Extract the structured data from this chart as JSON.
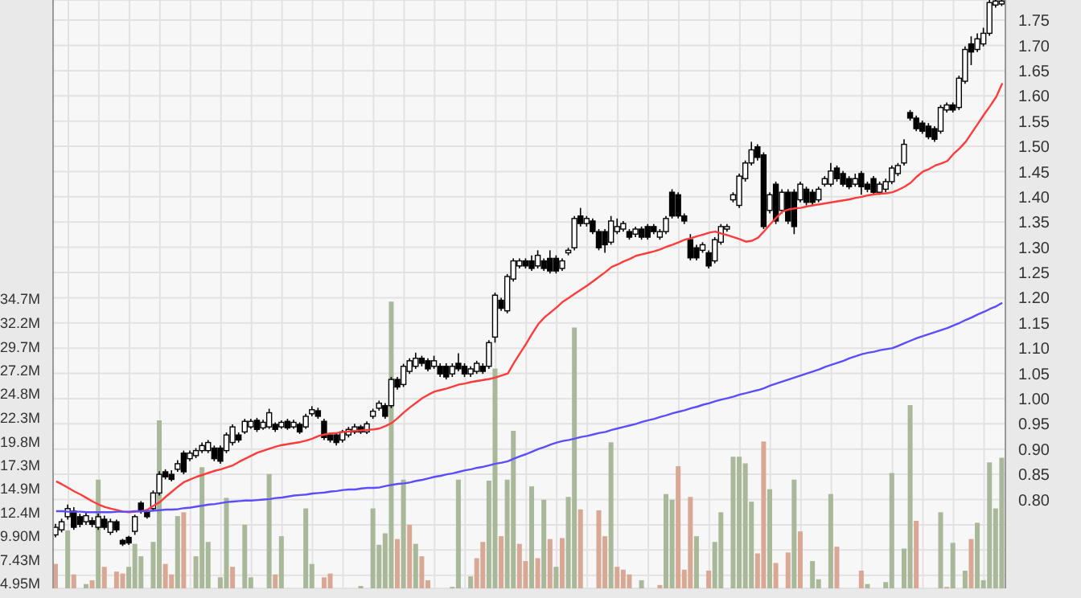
{
  "chart_data": {
    "type": "candlestick",
    "categories": [
      null,
      null,
      null,
      null,
      null,
      null,
      null,
      null,
      null,
      null,
      null,
      null,
      null,
      null,
      null,
      null,
      null,
      null,
      null,
      null,
      null,
      null,
      null,
      null,
      null,
      null,
      null,
      null,
      null,
      null,
      null,
      null,
      null,
      null,
      null,
      null,
      null,
      null,
      null,
      null,
      null,
      null,
      null,
      null,
      null,
      null,
      null,
      null,
      null,
      null,
      null,
      null,
      null,
      null,
      null,
      null,
      null,
      null,
      null,
      null,
      null,
      null,
      null,
      null,
      null,
      null,
      null,
      null,
      null,
      null,
      null,
      null,
      null,
      null,
      null,
      null,
      null,
      null,
      null,
      null,
      null,
      null,
      null,
      null,
      null,
      null,
      null,
      null,
      null,
      null,
      null,
      null,
      null,
      null,
      null,
      null,
      null,
      null,
      null,
      null,
      null,
      null,
      null,
      null,
      null,
      null,
      null,
      null,
      null,
      null,
      null,
      null,
      null,
      null,
      null,
      null,
      null,
      null,
      null,
      null,
      null,
      null,
      null,
      null,
      null,
      null,
      null,
      null,
      null,
      null,
      null,
      null,
      null,
      null,
      null,
      null,
      null,
      null,
      null,
      null,
      null,
      null,
      null,
      null,
      null,
      null,
      null,
      null,
      null,
      null,
      null,
      null,
      null,
      null,
      null,
      null
    ],
    "series": [
      {
        "type": "bar",
        "axis": "y",
        "values": [
          7.0,
          null,
          10.5,
          5.9,
          null,
          4.9,
          5.3,
          15.8,
          6.7,
          null,
          6.2,
          6.0,
          6.7,
          9.1,
          7.8,
          null,
          9.3,
          22.0,
          7.0,
          5.9,
          12.0,
          12.4,
          null,
          7.8,
          17.1,
          9.3,
          null,
          5.6,
          13.9,
          6.7,
          null,
          11.1,
          5.6,
          null,
          null,
          16.4,
          5.9,
          9.9,
          null,
          null,
          null,
          12.8,
          7.0,
          null,
          5.6,
          6.0,
          null,
          null,
          null,
          null,
          4.7,
          null,
          12.8,
          9.0,
          10.2,
          34.4,
          9.6,
          15.8,
          11.1,
          9.1,
          7.8,
          5.3,
          null,
          null,
          null,
          4.6,
          15.8,
          null,
          5.7,
          7.6,
          9.3,
          15.7,
          27.4,
          9.9,
          15.8,
          20.9,
          9.1,
          7.3,
          15.1,
          7.6,
          13.7,
          9.6,
          6.7,
          9.7,
          14.0,
          31.7,
          12.7,
          null,
          null,
          12.6,
          9.9,
          19.7,
          6.7,
          6.4,
          5.9,
          null,
          5.3,
          null,
          null,
          4.8,
          14.3,
          13.7,
          17.2,
          6.4,
          14.0,
          9.9,
          null,
          6.3,
          9.3,
          12.4,
          null,
          18.2,
          18.2,
          17.5,
          13.5,
          8.1,
          19.8,
          14.8,
          7.1,
          null,
          8.2,
          15.8,
          10.4,
          null,
          7.3,
          5.4,
          null,
          14.3,
          8.8,
          null,
          null,
          null,
          6.3,
          4.9,
          null,
          null,
          5.1,
          16.5,
          null,
          8.6,
          23.6,
          11.5,
          null,
          null,
          null,
          12.4,
          4.6,
          9.2,
          null,
          6.3,
          9.6,
          11.3,
          5.3,
          17.6,
          12.8,
          18.1
        ],
        "colors": [
          "#d8a894",
          "#a8b898",
          "#a8b898",
          "#d8a894",
          "#a8b898",
          "#a8b898",
          "#d8a894",
          "#a8b898",
          "#d8a894",
          "#a8b898",
          "#d8a894",
          "#d8a894",
          "#a8b898",
          "#a8b898",
          "#a8b898",
          "#a8b898",
          "#a8b898",
          "#a8b898",
          "#d8a894",
          "#d8a894",
          "#a8b898",
          "#d8a894",
          "#a8b898",
          "#a8b898",
          "#a8b898",
          "#a8b898",
          "#a8b898",
          "#a8b898",
          "#a8b898",
          "#d8a894",
          "#a8b898",
          "#a8b898",
          "#a8b898",
          "#a8b898",
          "#a8b898",
          "#a8b898",
          "#d8a894",
          "#a8b898",
          "#a8b898",
          "#a8b898",
          "#a8b898",
          "#a8b898",
          "#a8b898",
          "#a8b898",
          "#d8a894",
          "#d8a894",
          "#a8b898",
          "#a8b898",
          "#a8b898",
          "#a8b898",
          "#a8b898",
          "#a8b898",
          "#a8b898",
          "#a8b898",
          "#a8b898",
          "#a8b898",
          "#d8a894",
          "#a8b898",
          "#d8a894",
          "#a8b898",
          "#d8a894",
          "#d8a894",
          "#a8b898",
          "#a8b898",
          "#a8b898",
          "#a8b898",
          "#a8b898",
          "#a8b898",
          "#a8b898",
          "#d8a894",
          "#d8a894",
          "#a8b898",
          "#a8b898",
          "#d8a894",
          "#a8b898",
          "#a8b898",
          "#d8a894",
          "#d8a894",
          "#a8b898",
          "#d8a894",
          "#a8b898",
          "#d8a894",
          "#a8b898",
          "#d8a894",
          "#a8b898",
          "#a8b898",
          "#d8a894",
          "#a8b898",
          "#a8b898",
          "#d8a894",
          "#d8a894",
          "#a8b898",
          "#d8a894",
          "#d8a894",
          "#d8a894",
          "#a8b898",
          "#a8b898",
          "#a8b898",
          "#a8b898",
          "#d8a894",
          "#a8b898",
          "#a8b898",
          "#d8a894",
          "#d8a894",
          "#d8a894",
          "#a8b898",
          "#a8b898",
          "#d8a894",
          "#a8b898",
          "#a8b898",
          "#a8b898",
          "#a8b898",
          "#a8b898",
          "#a8b898",
          "#a8b898",
          "#d8a894",
          "#d8a894",
          "#a8b898",
          "#d8a894",
          "#a8b898",
          "#d8a894",
          "#a8b898",
          "#d8a894",
          "#a8b898",
          "#a8b898",
          "#a8b898",
          "#a8b898",
          "#a8b898",
          "#d8a894",
          "#a8b898",
          "#a8b898",
          "#a8b898",
          "#d8a894",
          "#a8b898",
          "#a8b898",
          "#a8b898",
          "#a8b898",
          "#a8b898",
          "#a8b898",
          "#a8b898",
          "#a8b898",
          "#d8a894",
          "#a8b898",
          "#a8b898",
          "#a8b898",
          "#a8b898",
          "#d8a894",
          "#a8b898",
          "#a8b898",
          "#a8b898",
          "#d8a894",
          "#a8b898",
          "#a8b898",
          "#a8b898",
          "#a8b898",
          "#a8b898"
        ]
      },
      {
        "type": "candlestick",
        "axis": "y2",
        "color": "#000000",
        "ohlc": [
          [
            0.73,
            0.752,
            0.725,
            0.745
          ],
          [
            0.74,
            0.762,
            0.735,
            0.756
          ],
          [
            0.766,
            0.79,
            0.76,
            0.782
          ],
          [
            0.777,
            0.785,
            0.74,
            0.745
          ],
          [
            0.766,
            0.772,
            0.745,
            0.751
          ],
          [
            0.756,
            0.775,
            0.75,
            0.768
          ],
          [
            0.758,
            0.765,
            0.745,
            0.751
          ],
          [
            0.745,
            0.772,
            0.74,
            0.766
          ],
          [
            0.761,
            0.768,
            0.74,
            0.745
          ],
          [
            0.735,
            0.762,
            0.73,
            0.756
          ],
          [
            0.756,
            0.76,
            0.735,
            0.74
          ],
          [
            0.719,
            0.722,
            0.708,
            0.712
          ],
          [
            0.725,
            0.728,
            0.71,
            0.714
          ],
          [
            0.737,
            0.77,
            0.73,
            0.766
          ],
          [
            0.793,
            0.797,
            0.772,
            0.777
          ],
          [
            0.777,
            0.78,
            0.762,
            0.766
          ],
          [
            0.782,
            0.818,
            0.778,
            0.813
          ],
          [
            0.813,
            0.856,
            0.808,
            0.85
          ],
          [
            0.855,
            0.86,
            0.84,
            0.845
          ],
          [
            0.85,
            0.858,
            0.836,
            0.84
          ],
          [
            0.86,
            0.878,
            0.855,
            0.871
          ],
          [
            0.892,
            0.897,
            0.85,
            0.855
          ],
          [
            0.881,
            0.897,
            0.876,
            0.892
          ],
          [
            0.887,
            0.902,
            0.882,
            0.897
          ],
          [
            0.897,
            0.913,
            0.892,
            0.907
          ],
          [
            0.897,
            0.918,
            0.892,
            0.913
          ],
          [
            0.902,
            0.907,
            0.876,
            0.881
          ],
          [
            0.902,
            0.907,
            0.871,
            0.876
          ],
          [
            0.897,
            0.933,
            0.892,
            0.928
          ],
          [
            0.913,
            0.949,
            0.907,
            0.944
          ],
          [
            0.928,
            0.933,
            0.913,
            0.918
          ],
          [
            0.934,
            0.96,
            0.93,
            0.955
          ],
          [
            0.944,
            0.96,
            0.94,
            0.955
          ],
          [
            0.957,
            0.962,
            0.934,
            0.939
          ],
          [
            0.942,
            0.958,
            0.938,
            0.953
          ],
          [
            0.944,
            0.98,
            0.94,
            0.972
          ],
          [
            0.949,
            0.953,
            0.934,
            0.939
          ],
          [
            0.944,
            0.957,
            0.94,
            0.953
          ],
          [
            0.955,
            0.96,
            0.938,
            0.942
          ],
          [
            0.944,
            0.958,
            0.94,
            0.953
          ],
          [
            0.949,
            0.953,
            0.93,
            0.934
          ],
          [
            0.944,
            0.97,
            0.94,
            0.965
          ],
          [
            0.97,
            0.985,
            0.965,
            0.978
          ],
          [
            0.976,
            0.982,
            0.96,
            0.965
          ],
          [
            0.955,
            0.96,
            0.918,
            0.923
          ],
          [
            0.928,
            0.933,
            0.913,
            0.918
          ],
          [
            0.928,
            0.932,
            0.907,
            0.913
          ],
          [
            0.918,
            0.938,
            0.913,
            0.934
          ],
          [
            0.928,
            0.944,
            0.923,
            0.939
          ],
          [
            0.934,
            0.95,
            0.93,
            0.944
          ],
          [
            0.944,
            0.948,
            0.93,
            0.934
          ],
          [
            0.934,
            0.955,
            0.93,
            0.95
          ],
          [
            0.965,
            0.98,
            0.96,
            0.975
          ],
          [
            0.981,
            0.996,
            0.976,
            0.991
          ],
          [
            0.986,
            0.991,
            0.96,
            0.965
          ],
          [
            0.986,
            1.043,
            0.981,
            1.038
          ],
          [
            1.038,
            1.043,
            1.018,
            1.023
          ],
          [
            1.028,
            1.069,
            1.023,
            1.064
          ],
          [
            1.054,
            1.08,
            1.049,
            1.075
          ],
          [
            1.064,
            1.091,
            1.059,
            1.08
          ],
          [
            1.08,
            1.085,
            1.064,
            1.07
          ],
          [
            1.075,
            1.08,
            1.054,
            1.059
          ],
          [
            1.064,
            1.085,
            1.059,
            1.075
          ],
          [
            1.064,
            1.07,
            1.043,
            1.049
          ],
          [
            1.064,
            1.07,
            1.038,
            1.043
          ],
          [
            1.049,
            1.07,
            1.043,
            1.064
          ],
          [
            1.07,
            1.09,
            1.054,
            1.059
          ],
          [
            1.064,
            1.07,
            1.043,
            1.049
          ],
          [
            1.049,
            1.064,
            1.043,
            1.059
          ],
          [
            1.054,
            1.075,
            1.049,
            1.07
          ],
          [
            1.064,
            1.07,
            1.049,
            1.054
          ],
          [
            1.064,
            1.116,
            1.059,
            1.111
          ],
          [
            1.122,
            1.21,
            1.111,
            1.205
          ],
          [
            1.195,
            1.2,
            1.174,
            1.179
          ],
          [
            1.174,
            1.247,
            1.169,
            1.242
          ],
          [
            1.237,
            1.278,
            1.232,
            1.273
          ],
          [
            1.263,
            1.278,
            1.258,
            1.273
          ],
          [
            1.273,
            1.278,
            1.258,
            1.263
          ],
          [
            1.273,
            1.284,
            1.253,
            1.258
          ],
          [
            1.263,
            1.294,
            1.258,
            1.284
          ],
          [
            1.273,
            1.278,
            1.253,
            1.258
          ],
          [
            1.278,
            1.294,
            1.248,
            1.253
          ],
          [
            1.278,
            1.284,
            1.248,
            1.253
          ],
          [
            1.258,
            1.278,
            1.253,
            1.273
          ],
          [
            1.289,
            1.299,
            1.284,
            1.294
          ],
          [
            1.299,
            1.362,
            1.294,
            1.357
          ],
          [
            1.362,
            1.378,
            1.341,
            1.347
          ],
          [
            1.347,
            1.362,
            1.341,
            1.357
          ],
          [
            1.352,
            1.357,
            1.326,
            1.331
          ],
          [
            1.331,
            1.336,
            1.294,
            1.299
          ],
          [
            1.331,
            1.336,
            1.289,
            1.305
          ],
          [
            1.31,
            1.362,
            1.305,
            1.352
          ],
          [
            1.331,
            1.357,
            1.326,
            1.341
          ],
          [
            1.336,
            1.352,
            1.331,
            1.347
          ],
          [
            1.331,
            1.336,
            1.315,
            1.32
          ],
          [
            1.326,
            1.341,
            1.32,
            1.336
          ],
          [
            1.336,
            1.341,
            1.315,
            1.32
          ],
          [
            1.341,
            1.346,
            1.315,
            1.32
          ],
          [
            1.341,
            1.346,
            1.326,
            1.331
          ],
          [
            1.32,
            1.336,
            1.315,
            1.331
          ],
          [
            1.331,
            1.362,
            1.326,
            1.357
          ],
          [
            1.409,
            1.415,
            1.357,
            1.362
          ],
          [
            1.404,
            1.409,
            1.357,
            1.362
          ],
          [
            1.362,
            1.367,
            1.346,
            1.352
          ],
          [
            1.315,
            1.326,
            1.274,
            1.279
          ],
          [
            1.299,
            1.305,
            1.274,
            1.279
          ],
          [
            1.294,
            1.31,
            1.289,
            1.305
          ],
          [
            1.289,
            1.294,
            1.258,
            1.263
          ],
          [
            1.273,
            1.32,
            1.268,
            1.315
          ],
          [
            1.31,
            1.346,
            1.305,
            1.341
          ],
          [
            1.336,
            1.346,
            1.331,
            1.341
          ],
          [
            1.394,
            1.409,
            1.389,
            1.404
          ],
          [
            1.383,
            1.446,
            1.378,
            1.441
          ],
          [
            1.436,
            1.472,
            1.43,
            1.467
          ],
          [
            1.467,
            1.509,
            1.462,
            1.493
          ],
          [
            1.499,
            1.504,
            1.472,
            1.478
          ],
          [
            1.483,
            1.488,
            1.336,
            1.341
          ],
          [
            1.373,
            1.409,
            1.367,
            1.404
          ],
          [
            1.425,
            1.43,
            1.346,
            1.352
          ],
          [
            1.373,
            1.415,
            1.367,
            1.409
          ],
          [
            1.409,
            1.415,
            1.346,
            1.352
          ],
          [
            1.409,
            1.415,
            1.326,
            1.341
          ],
          [
            1.394,
            1.43,
            1.389,
            1.425
          ],
          [
            1.415,
            1.42,
            1.383,
            1.389
          ],
          [
            1.409,
            1.415,
            1.383,
            1.389
          ],
          [
            1.394,
            1.42,
            1.389,
            1.415
          ],
          [
            1.425,
            1.441,
            1.42,
            1.436
          ],
          [
            1.425,
            1.467,
            1.42,
            1.451
          ],
          [
            1.457,
            1.462,
            1.43,
            1.436
          ],
          [
            1.446,
            1.451,
            1.42,
            1.425
          ],
          [
            1.436,
            1.441,
            1.415,
            1.42
          ],
          [
            1.425,
            1.446,
            1.42,
            1.436
          ],
          [
            1.446,
            1.451,
            1.404,
            1.42
          ],
          [
            1.425,
            1.43,
            1.409,
            1.415
          ],
          [
            1.436,
            1.441,
            1.404,
            1.409
          ],
          [
            1.409,
            1.43,
            1.404,
            1.425
          ],
          [
            1.415,
            1.436,
            1.409,
            1.43
          ],
          [
            1.43,
            1.462,
            1.425,
            1.457
          ],
          [
            1.446,
            1.467,
            1.441,
            1.462
          ],
          [
            1.467,
            1.514,
            1.462,
            1.504
          ],
          [
            1.567,
            1.572,
            1.551,
            1.556
          ],
          [
            1.556,
            1.561,
            1.53,
            1.535
          ],
          [
            1.546,
            1.551,
            1.525,
            1.53
          ],
          [
            1.54,
            1.546,
            1.514,
            1.519
          ],
          [
            1.535,
            1.54,
            1.509,
            1.514
          ],
          [
            1.53,
            1.582,
            1.525,
            1.577
          ],
          [
            1.572,
            1.587,
            1.567,
            1.582
          ],
          [
            1.582,
            1.587,
            1.567,
            1.572
          ],
          [
            1.577,
            1.64,
            1.572,
            1.635
          ],
          [
            1.629,
            1.698,
            1.624,
            1.692
          ],
          [
            1.703,
            1.718,
            1.661,
            1.687
          ],
          [
            1.692,
            1.724,
            1.687,
            1.713
          ],
          [
            1.703,
            1.735,
            1.698,
            1.724
          ],
          [
            1.724,
            1.79,
            1.719,
            1.785
          ],
          [
            1.78,
            1.79,
            1.775,
            1.788
          ],
          [
            1.782,
            1.79,
            1.778,
            1.788
          ]
        ]
      },
      {
        "type": "line",
        "axis": "y2",
        "color": "#ff3b3b",
        "values": [
          0.836,
          0.83,
          0.823,
          0.816,
          0.81,
          0.803,
          0.796,
          0.79,
          0.785,
          0.782,
          0.779,
          0.776,
          0.775,
          0.776,
          0.777,
          0.78,
          0.788,
          0.795,
          0.806,
          0.816,
          0.826,
          0.835,
          0.84,
          0.845,
          0.849,
          0.853,
          0.857,
          0.86,
          0.864,
          0.868,
          0.875,
          0.881,
          0.887,
          0.893,
          0.897,
          0.901,
          0.905,
          0.908,
          0.91,
          0.912,
          0.914,
          0.917,
          0.921,
          0.926,
          0.929,
          0.931,
          0.932,
          0.934,
          0.935,
          0.936,
          0.937,
          0.938,
          0.939,
          0.941,
          0.946,
          0.952,
          0.962,
          0.973,
          0.983,
          0.992,
          1.001,
          1.008,
          1.014,
          1.017,
          1.02,
          1.024,
          1.028,
          1.03,
          1.033,
          1.035,
          1.037,
          1.039,
          1.042,
          1.046,
          1.05,
          1.071,
          1.09,
          1.109,
          1.129,
          1.148,
          1.161,
          1.171,
          1.181,
          1.192,
          1.2,
          1.208,
          1.216,
          1.224,
          1.233,
          1.242,
          1.251,
          1.261,
          1.266,
          1.272,
          1.277,
          1.283,
          1.286,
          1.289,
          1.292,
          1.296,
          1.301,
          1.305,
          1.31,
          1.315,
          1.318,
          1.322,
          1.325,
          1.329,
          1.331,
          1.327,
          1.324,
          1.32,
          1.316,
          1.311,
          1.313,
          1.319,
          1.332,
          1.346,
          1.359,
          1.371,
          1.375,
          1.377,
          1.378,
          1.381,
          1.383,
          1.385,
          1.387,
          1.389,
          1.391,
          1.393,
          1.395,
          1.398,
          1.4,
          1.403,
          1.405,
          1.406,
          1.407,
          1.409,
          1.414,
          1.42,
          1.428,
          1.44,
          1.45,
          1.455,
          1.462,
          1.466,
          1.471,
          1.485,
          1.496,
          1.509,
          1.527,
          1.545,
          1.563,
          1.58,
          1.598,
          1.625
        ]
      },
      {
        "type": "line",
        "axis": "y2",
        "color": "#5b4dff",
        "values": [
          0.777,
          0.777,
          0.776,
          0.776,
          0.776,
          0.775,
          0.775,
          0.775,
          0.775,
          0.775,
          0.776,
          0.776,
          0.776,
          0.777,
          0.777,
          0.777,
          0.778,
          0.779,
          0.78,
          0.78,
          0.781,
          0.783,
          0.784,
          0.786,
          0.788,
          0.79,
          0.791,
          0.793,
          0.795,
          0.796,
          0.797,
          0.798,
          0.798,
          0.799,
          0.8,
          0.801,
          0.803,
          0.804,
          0.806,
          0.808,
          0.809,
          0.81,
          0.812,
          0.813,
          0.814,
          0.816,
          0.817,
          0.819,
          0.82,
          0.82,
          0.822,
          0.823,
          0.823,
          0.824,
          0.827,
          0.829,
          0.831,
          0.832,
          0.834,
          0.837,
          0.839,
          0.842,
          0.845,
          0.847,
          0.85,
          0.852,
          0.855,
          0.858,
          0.86,
          0.863,
          0.865,
          0.868,
          0.871,
          0.873,
          0.876,
          0.881,
          0.886,
          0.89,
          0.895,
          0.9,
          0.904,
          0.909,
          0.913,
          0.916,
          0.918,
          0.921,
          0.924,
          0.926,
          0.929,
          0.932,
          0.934,
          0.938,
          0.941,
          0.944,
          0.947,
          0.95,
          0.954,
          0.957,
          0.96,
          0.964,
          0.967,
          0.971,
          0.974,
          0.977,
          0.981,
          0.984,
          0.988,
          0.991,
          0.995,
          0.998,
          1.001,
          1.004,
          1.008,
          1.011,
          1.014,
          1.017,
          1.021,
          1.026,
          1.03,
          1.034,
          1.038,
          1.042,
          1.046,
          1.05,
          1.054,
          1.058,
          1.063,
          1.067,
          1.071,
          1.075,
          1.08,
          1.084,
          1.088,
          1.091,
          1.093,
          1.096,
          1.098,
          1.1,
          1.105,
          1.11,
          1.115,
          1.12,
          1.124,
          1.128,
          1.132,
          1.136,
          1.14,
          1.145,
          1.15,
          1.156,
          1.161,
          1.167,
          1.172,
          1.178,
          1.183,
          1.19
        ]
      }
    ],
    "ylim": [
      4.45,
      65.9
    ],
    "yticks": [
      {
        "value": 4.95,
        "label": "4.95M"
      },
      {
        "value": 7.43,
        "label": "7.43M"
      },
      {
        "value": 9.9,
        "label": "9.90M"
      },
      {
        "value": 12.4,
        "label": "12.4M"
      },
      {
        "value": 14.9,
        "label": "14.9M"
      },
      {
        "value": 17.3,
        "label": "17.3M"
      },
      {
        "value": 19.8,
        "label": "19.8M"
      },
      {
        "value": 22.3,
        "label": "22.3M"
      },
      {
        "value": 24.8,
        "label": "24.8M"
      },
      {
        "value": 27.2,
        "label": "27.2M"
      },
      {
        "value": 29.7,
        "label": "29.7M"
      },
      {
        "value": 32.2,
        "label": "32.2M"
      },
      {
        "value": 34.7,
        "label": "34.7M"
      }
    ],
    "y2lim": [
      0.624,
      1.79
    ],
    "y2ticks": [
      {
        "value": 0.65,
        "label": null
      },
      {
        "value": 0.7,
        "label": null
      },
      {
        "value": 0.75,
        "label": null
      },
      {
        "value": 0.8,
        "label": "0.80"
      },
      0.85,
      {
        "value": 0.9,
        "label": "0.90"
      },
      0.95,
      {
        "value": 1.0,
        "label": "1.00"
      },
      1.05,
      {
        "value": 1.1,
        "label": "1.10"
      },
      1.15,
      {
        "value": 1.2,
        "label": "1.20"
      },
      1.25,
      {
        "value": 1.3,
        "label": "1.30"
      },
      1.35,
      {
        "value": 1.4,
        "label": "1.40"
      },
      1.45,
      {
        "value": 1.5,
        "label": "1.50"
      },
      1.55,
      {
        "value": 1.6,
        "label": "1.60"
      },
      1.65,
      {
        "value": 1.7,
        "label": "1.70"
      },
      1.75
    ],
    "grid": true
  }
}
